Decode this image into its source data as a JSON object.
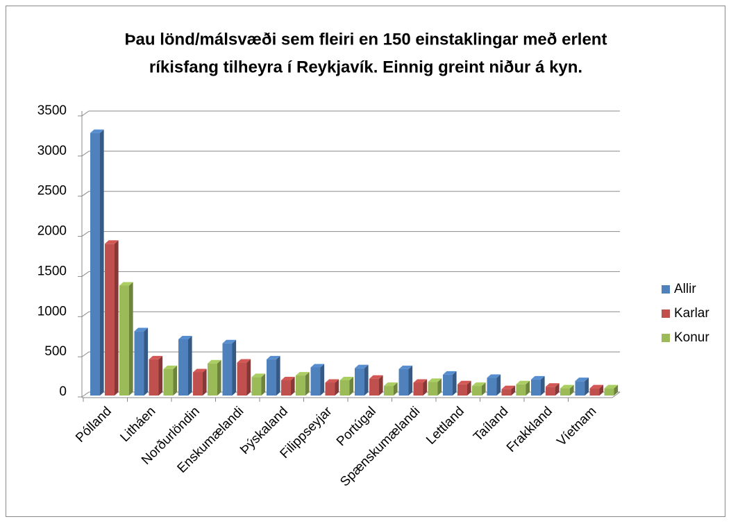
{
  "chart_data": {
    "type": "bar3d",
    "title": [
      "Þau lönd/málsvæði sem fleiri en 150 einstaklingar með erlent",
      "ríkisfang tilheyra í Reykjavík. Einnig greint niður á kyn."
    ],
    "categories": [
      "Pólland",
      "Litháen",
      "Norðurlöndin",
      "Enskumælandi",
      "Þýskaland",
      "Filippseyjar",
      "Portúgal",
      "Spænskumælandi",
      "Lettland",
      "Taíland",
      "Frakkland",
      "Víetnam"
    ],
    "series": [
      {
        "name": "Allir",
        "color": "#4f81bd",
        "values": [
          3270,
          800,
          700,
          650,
          450,
          350,
          340,
          330,
          260,
          220,
          200,
          180
        ]
      },
      {
        "name": "Karlar",
        "color": "#c0504d",
        "values": [
          1890,
          450,
          290,
          410,
          190,
          160,
          210,
          160,
          140,
          80,
          110,
          90
        ]
      },
      {
        "name": "Konur",
        "color": "#9bbb59",
        "values": [
          1370,
          330,
          400,
          230,
          250,
          190,
          120,
          170,
          120,
          140,
          90,
          90
        ]
      }
    ],
    "ylim": [
      0,
      3500
    ],
    "yticks": [
      0,
      500,
      1000,
      1500,
      2000,
      2500,
      3000,
      3500
    ],
    "grid": true,
    "legend": "right"
  }
}
